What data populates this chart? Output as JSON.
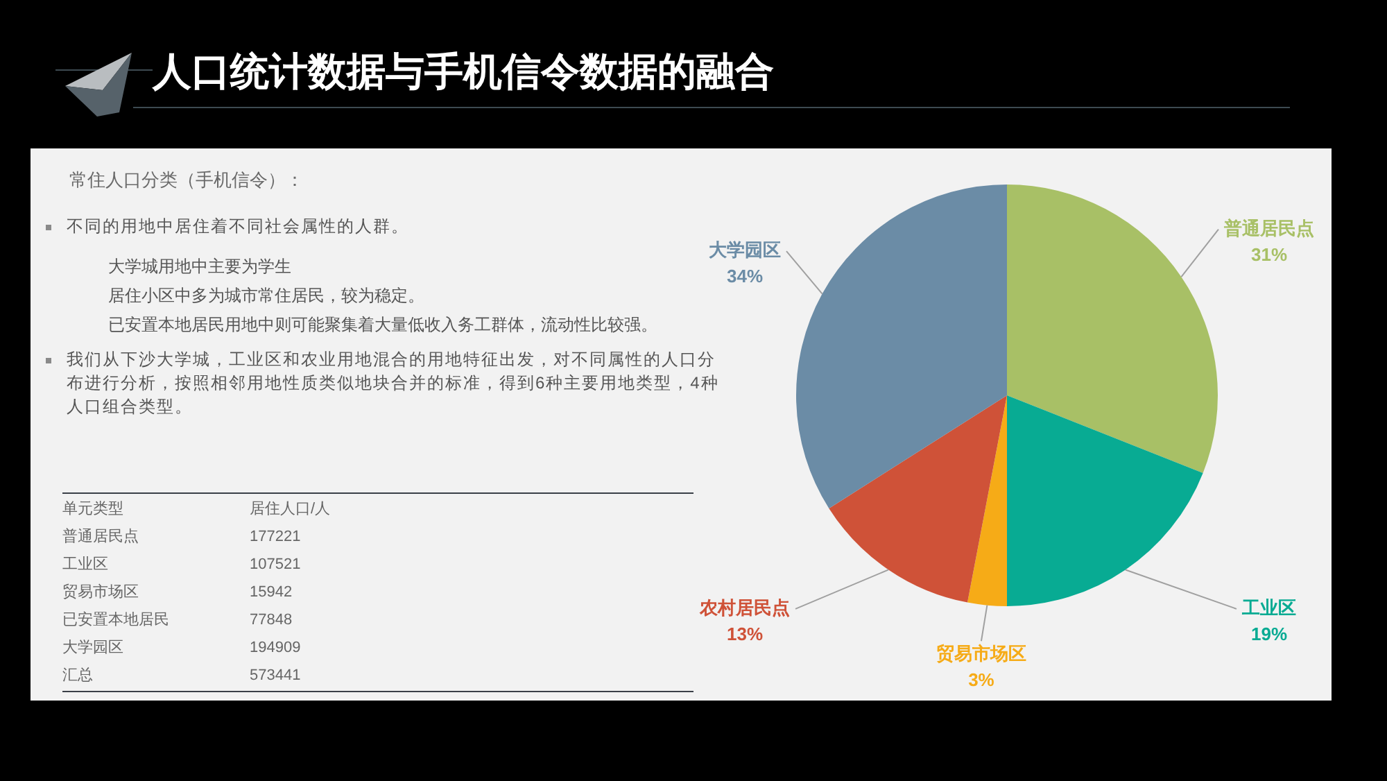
{
  "chart_data": [
    {
      "type": "other",
      "title": "人口统计数据与手机信令数据的融合",
      "subtitle": "常住人口分类（手机信令）：",
      "annotations": [
        "不同的用地中居住着不同社会属性的人群。",
        "大学城用地中主要为学生",
        "居住小区中多为城市常住居民，较为稳定。",
        "已安置本地居民用地中则可能聚集着大量低收入务工群体，流动性比较强。",
        "我们从下沙大学城，工业区和农业用地混合的用地特征出发，对不同属性的人口分布进行分析，按照相邻用地性质类似地块合并的标准，得到6种主要用地类型，4种人口组合类型。"
      ],
      "xlabel": "单元类型",
      "ylabel": "居住人口/人",
      "categories": [
        "普通居民点",
        "工业区",
        "贸易市场区",
        "已安置本地居民",
        "大学园区",
        "汇总"
      ],
      "values": [
        177221,
        107521,
        15942,
        77848,
        194909,
        573441
      ],
      "data_labels": true
    },
    {
      "type": "pie",
      "categories": [
        "普通居民点",
        "工业区",
        "贸易市场区",
        "农村居民点",
        "大学园区"
      ],
      "values": [
        31,
        19,
        3,
        13,
        34
      ],
      "value_labels": [
        "31%",
        "19%",
        "3%",
        "13%",
        "34%"
      ],
      "colors": [
        "#a8c066",
        "#08ab93",
        "#f6ab17",
        "#cf5238",
        "#6b8ca6"
      ]
    }
  ]
}
